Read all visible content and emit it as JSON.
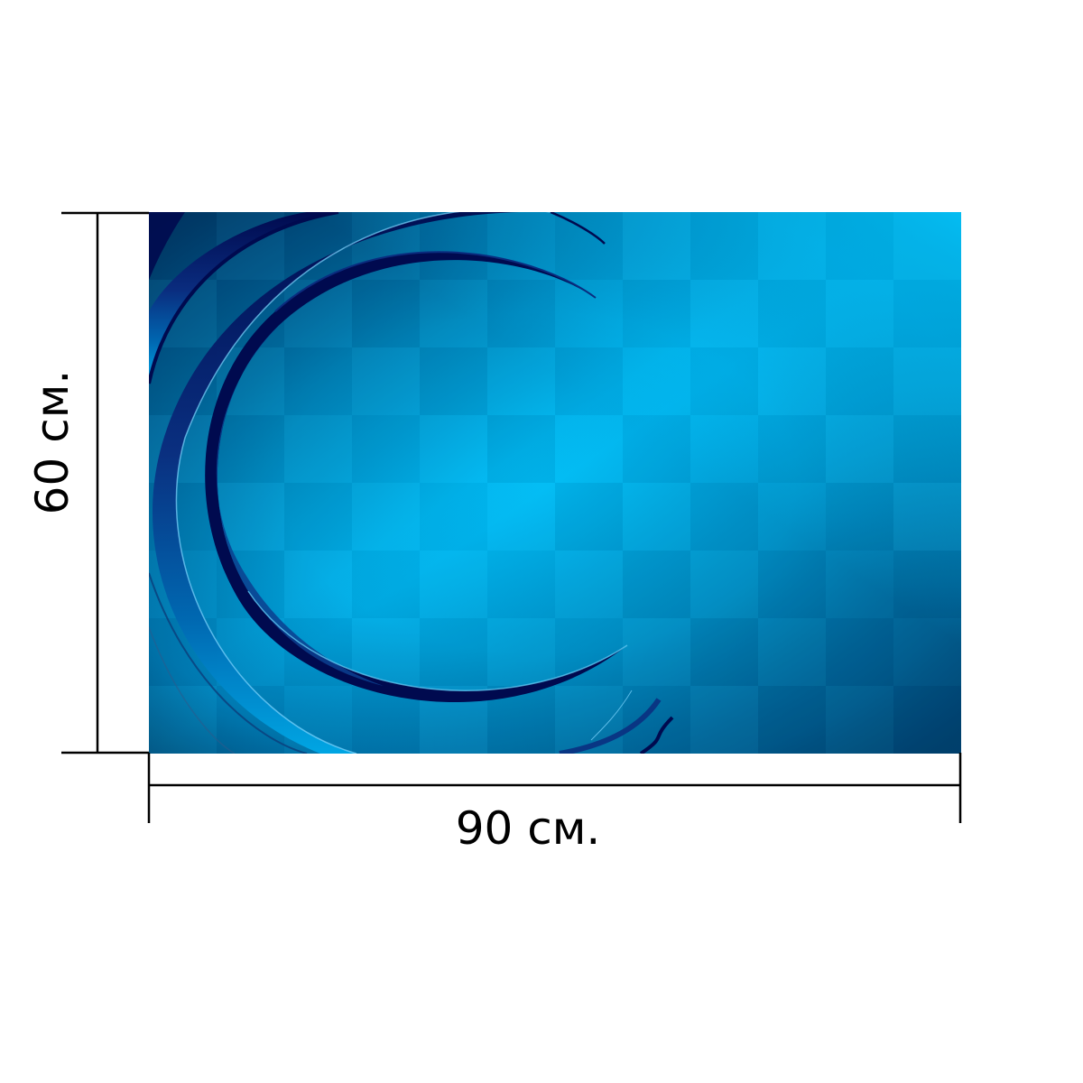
{
  "dimensions": {
    "width_label": "90 см.",
    "height_label": "60 см."
  },
  "print": {
    "palette": {
      "cyan": "#00BFFF",
      "mid_blue": "#0091C9",
      "deep_blue": "#004B7A",
      "navy": "#000A4F",
      "line": "#000000"
    }
  }
}
